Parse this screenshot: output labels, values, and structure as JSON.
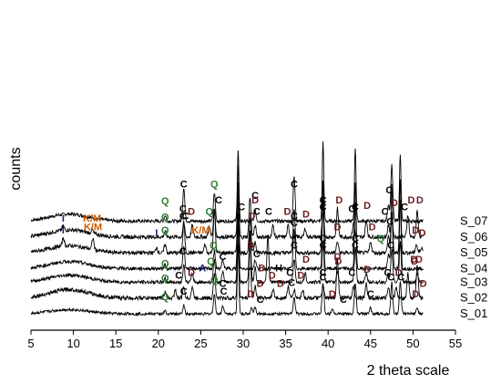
{
  "chart_data": {
    "type": "line",
    "title": "",
    "xlabel": "2 theta scale",
    "ylabel": "counts",
    "xlim": [
      5,
      55
    ],
    "x_ticks": [
      5,
      10,
      15,
      20,
      25,
      30,
      35,
      40,
      45,
      50,
      55
    ],
    "grid": false,
    "legend": "series labels at right end of each trace",
    "colors": {
      "trace": "#000000",
      "C": "#000000",
      "Q": "#2e7d32",
      "D": "#6b1a1a",
      "KM": "#cc5a00",
      "I": "#1a1a7a",
      "A": "#1a1a7a",
      "H": "#000000"
    },
    "series": [
      {
        "name": "S_07",
        "offset": 9,
        "noise": 0.6,
        "hump": 2.5,
        "peaks": [
          [
            20.8,
            2
          ],
          [
            23.0,
            12
          ],
          [
            26.6,
            10
          ],
          [
            29.4,
            25
          ],
          [
            31.4,
            4
          ],
          [
            36.0,
            16
          ],
          [
            39.4,
            28
          ],
          [
            43.2,
            26
          ],
          [
            47.1,
            6
          ],
          [
            47.5,
            20
          ],
          [
            48.5,
            24
          ]
        ]
      },
      {
        "name": "S_06",
        "offset": 7.6,
        "noise": 0.7,
        "hump": 2.5,
        "peaks": [
          [
            8.8,
            1.5
          ],
          [
            12.2,
            1.5
          ],
          [
            20.8,
            2
          ],
          [
            23.0,
            5
          ],
          [
            24.0,
            4
          ],
          [
            26.0,
            4
          ],
          [
            26.6,
            10
          ],
          [
            29.4,
            25
          ],
          [
            30.8,
            14
          ],
          [
            31.4,
            4
          ],
          [
            33.5,
            4
          ],
          [
            35.3,
            4
          ],
          [
            37.3,
            3
          ],
          [
            39.4,
            8
          ],
          [
            41.1,
            10
          ],
          [
            43.0,
            5
          ],
          [
            44.5,
            6
          ],
          [
            47.1,
            4
          ],
          [
            47.5,
            7
          ],
          [
            49.4,
            8
          ],
          [
            50.5,
            9
          ]
        ]
      },
      {
        "name": "S_05",
        "offset": 6.2,
        "noise": 0.7,
        "hump": 2.5,
        "peaks": [
          [
            8.8,
            3
          ],
          [
            12.3,
            4
          ],
          [
            19.8,
            2
          ],
          [
            20.8,
            3
          ],
          [
            23.0,
            10
          ],
          [
            25.5,
            3
          ],
          [
            26.6,
            15
          ],
          [
            29.4,
            25
          ],
          [
            30.8,
            12
          ],
          [
            31.4,
            4
          ],
          [
            36.0,
            16
          ],
          [
            39.4,
            25
          ],
          [
            41.1,
            4
          ],
          [
            43.2,
            25
          ],
          [
            45.0,
            4
          ],
          [
            47.1,
            6
          ],
          [
            47.5,
            24
          ],
          [
            48.5,
            26
          ],
          [
            50.4,
            3
          ],
          [
            51.0,
            2
          ]
        ]
      },
      {
        "name": "S_04",
        "offset": 4.8,
        "noise": 0.6,
        "hump": 2.5,
        "peaks": [
          [
            20.8,
            1.5
          ],
          [
            23.0,
            8
          ],
          [
            26.6,
            6
          ],
          [
            27.6,
            3
          ],
          [
            29.4,
            25
          ],
          [
            31.4,
            3
          ],
          [
            36.0,
            14
          ],
          [
            39.4,
            25
          ],
          [
            43.2,
            24
          ],
          [
            47.1,
            5
          ],
          [
            47.5,
            20
          ],
          [
            48.5,
            24
          ]
        ]
      },
      {
        "name": "S_03",
        "offset": 3.6,
        "noise": 0.6,
        "hump": 2.5,
        "peaks": [
          [
            20.8,
            1.5
          ],
          [
            23.0,
            6
          ],
          [
            24.0,
            3
          ],
          [
            26.6,
            8
          ],
          [
            27.6,
            4
          ],
          [
            29.4,
            25
          ],
          [
            30.8,
            18
          ],
          [
            31.4,
            5
          ],
          [
            32.9,
            17
          ],
          [
            36.0,
            8
          ],
          [
            37.3,
            3
          ],
          [
            39.4,
            14
          ],
          [
            41.1,
            4
          ],
          [
            43.2,
            12
          ],
          [
            44.5,
            3
          ],
          [
            47.1,
            3
          ],
          [
            47.5,
            12
          ],
          [
            48.5,
            14
          ],
          [
            50.5,
            3
          ]
        ]
      },
      {
        "name": "S_02",
        "offset": 2.2,
        "noise": 0.7,
        "hump": 3.0,
        "peaks": [
          [
            20.8,
            2
          ],
          [
            22.0,
            3
          ],
          [
            23.0,
            4
          ],
          [
            24.0,
            4
          ],
          [
            26.6,
            9
          ],
          [
            29.4,
            25
          ],
          [
            30.8,
            22
          ],
          [
            31.4,
            4
          ],
          [
            33.5,
            3
          ],
          [
            35.3,
            4
          ],
          [
            36.0,
            3
          ],
          [
            37.0,
            3
          ],
          [
            39.4,
            4
          ],
          [
            41.1,
            14
          ],
          [
            43.0,
            4
          ],
          [
            44.5,
            5
          ],
          [
            47.1,
            4
          ],
          [
            48.0,
            4
          ],
          [
            49.4,
            9
          ],
          [
            50.5,
            12
          ]
        ]
      },
      {
        "name": "S_01",
        "offset": 0.8,
        "noise": 0.5,
        "hump": 1.5,
        "peaks": [
          [
            20.8,
            1
          ],
          [
            23.0,
            3
          ],
          [
            26.6,
            7
          ],
          [
            27.6,
            3
          ],
          [
            29.4,
            25
          ],
          [
            31.0,
            2
          ],
          [
            31.4,
            2
          ],
          [
            36.0,
            6
          ],
          [
            39.4,
            11
          ],
          [
            40.5,
            2
          ],
          [
            43.2,
            11
          ],
          [
            45.0,
            2
          ],
          [
            47.5,
            11
          ],
          [
            48.5,
            11
          ],
          [
            50.5,
            2
          ]
        ]
      }
    ],
    "annotations": [
      {
        "t": "C",
        "x": 29.8,
        "s": 0,
        "k": "C"
      },
      {
        "t": "C",
        "x": 23.0,
        "s": 0,
        "k": "C"
      },
      {
        "t": "Q",
        "x": 26.6,
        "s": 0,
        "k": "Q"
      },
      {
        "t": "Q",
        "x": 20.8,
        "s": 0,
        "k": "Q"
      },
      {
        "t": "C",
        "x": 31.4,
        "s": 0,
        "k": "C"
      },
      {
        "t": "C",
        "x": 36.0,
        "s": 0,
        "k": "C"
      },
      {
        "t": "C",
        "x": 39.4,
        "s": 0,
        "k": "C"
      },
      {
        "t": "C",
        "x": 43.2,
        "s": 0,
        "k": "C"
      },
      {
        "t": "C",
        "x": 47.2,
        "s": 0,
        "k": "C"
      },
      {
        "t": "C",
        "x": 49.0,
        "s": 0,
        "k": "C"
      },
      {
        "t": "I",
        "x": 8.8,
        "s": 1,
        "k": "I"
      },
      {
        "t": "K/M",
        "x": 12.2,
        "s": 1,
        "k": "KM"
      },
      {
        "t": "Q",
        "x": 20.8,
        "s": 1,
        "k": "Q"
      },
      {
        "t": "C",
        "x": 22.9,
        "s": 1,
        "k": "C"
      },
      {
        "t": "D",
        "x": 23.9,
        "s": 1,
        "k": "D"
      },
      {
        "t": "Q",
        "x": 26.0,
        "s": 1,
        "k": "Q"
      },
      {
        "t": "C",
        "x": 27.1,
        "s": 1,
        "k": "C"
      },
      {
        "t": "D",
        "x": 31.4,
        "s": 1,
        "k": "D"
      },
      {
        "t": "C",
        "x": 31.6,
        "s": 1,
        "k": "C"
      },
      {
        "t": "C",
        "x": 33.0,
        "s": 1,
        "k": "C"
      },
      {
        "t": "D",
        "x": 35.2,
        "s": 1,
        "k": "D"
      },
      {
        "t": "C",
        "x": 36.0,
        "s": 1,
        "k": "C"
      },
      {
        "t": "D",
        "x": 37.4,
        "s": 1,
        "k": "D"
      },
      {
        "t": "C",
        "x": 39.4,
        "s": 1,
        "k": "C"
      },
      {
        "t": "D",
        "x": 41.3,
        "s": 1,
        "k": "D"
      },
      {
        "t": "C",
        "x": 42.8,
        "s": 1,
        "k": "C"
      },
      {
        "t": "D",
        "x": 44.6,
        "s": 1,
        "k": "D"
      },
      {
        "t": "C",
        "x": 46.7,
        "s": 1,
        "k": "C"
      },
      {
        "t": "D",
        "x": 47.8,
        "s": 1,
        "k": "D"
      },
      {
        "t": "D",
        "x": 49.8,
        "s": 1,
        "k": "D"
      },
      {
        "t": "D",
        "x": 50.8,
        "s": 1,
        "k": "D"
      },
      {
        "t": "I",
        "x": 8.8,
        "s": 2,
        "k": "I"
      },
      {
        "t": "K/M",
        "x": 12.3,
        "s": 2,
        "k": "KM"
      },
      {
        "t": "I",
        "x": 19.8,
        "s": 2,
        "k": "I"
      },
      {
        "t": "Q",
        "x": 20.8,
        "s": 2,
        "k": "Q"
      },
      {
        "t": "C",
        "x": 22.9,
        "s": 2,
        "k": "C"
      },
      {
        "t": "K/M",
        "x": 25.0,
        "s": 2,
        "k": "KM"
      },
      {
        "t": "C",
        "x": 23.2,
        "s": 2,
        "k": "C"
      },
      {
        "t": "D",
        "x": 31.0,
        "s": 2,
        "k": "D"
      },
      {
        "t": "C",
        "x": 36.0,
        "s": 2,
        "k": "C"
      },
      {
        "t": "C",
        "x": 39.4,
        "s": 2,
        "k": "C"
      },
      {
        "t": "D",
        "x": 41.1,
        "s": 2,
        "k": "D"
      },
      {
        "t": "C",
        "x": 43.2,
        "s": 2,
        "k": "C"
      },
      {
        "t": "D",
        "x": 45.2,
        "s": 2,
        "k": "D"
      },
      {
        "t": "Q",
        "x": 46.2,
        "s": 2,
        "k": "Q"
      },
      {
        "t": "C",
        "x": 47.3,
        "s": 2,
        "k": "C"
      },
      {
        "t": "D",
        "x": 50.3,
        "s": 2,
        "k": "D"
      },
      {
        "t": "D",
        "x": 51.1,
        "s": 2,
        "k": "D"
      },
      {
        "t": "Q",
        "x": 20.8,
        "s": 4,
        "k": "Q"
      },
      {
        "t": "C",
        "x": 22.9,
        "s": 4,
        "k": "C"
      },
      {
        "t": "Q",
        "x": 26.5,
        "s": 4,
        "k": "Q"
      },
      {
        "t": "C",
        "x": 27.6,
        "s": 4,
        "k": "C"
      },
      {
        "t": "D",
        "x": 30.9,
        "s": 4,
        "k": "D"
      },
      {
        "t": "C",
        "x": 31.6,
        "s": 4,
        "k": "C"
      },
      {
        "t": "D",
        "x": 32.2,
        "s": 4,
        "k": "D"
      },
      {
        "t": "A",
        "x": 25.2,
        "s": 4,
        "k": "A"
      },
      {
        "t": "H",
        "x": 34.2,
        "s": 4,
        "k": "H"
      },
      {
        "t": "C",
        "x": 36.0,
        "s": 4,
        "k": "C"
      },
      {
        "t": "D",
        "x": 37.4,
        "s": 4,
        "k": "D"
      },
      {
        "t": "C",
        "x": 39.4,
        "s": 4,
        "k": "C"
      },
      {
        "t": "D",
        "x": 41.1,
        "s": 4,
        "k": "D"
      },
      {
        "t": "C",
        "x": 43.2,
        "s": 4,
        "k": "C"
      },
      {
        "t": "C",
        "x": 47.4,
        "s": 4,
        "k": "C"
      },
      {
        "t": "D",
        "x": 50.1,
        "s": 4,
        "k": "D"
      },
      {
        "t": "D",
        "x": 50.7,
        "s": 4,
        "k": "D"
      },
      {
        "t": "Q",
        "x": 20.8,
        "s": 5,
        "k": "Q"
      },
      {
        "t": "C",
        "x": 22.4,
        "s": 5,
        "k": "C"
      },
      {
        "t": "D",
        "x": 23.9,
        "s": 5,
        "k": "D"
      },
      {
        "t": "Q",
        "x": 26.2,
        "s": 5,
        "k": "Q"
      },
      {
        "t": "C",
        "x": 27.6,
        "s": 5,
        "k": "C"
      },
      {
        "t": "D",
        "x": 32.0,
        "s": 5,
        "k": "D"
      },
      {
        "t": "D",
        "x": 33.4,
        "s": 5,
        "k": "D"
      },
      {
        "t": "D",
        "x": 34.4,
        "s": 5,
        "k": "D"
      },
      {
        "t": "C",
        "x": 35.5,
        "s": 5,
        "k": "C"
      },
      {
        "t": "D",
        "x": 36.8,
        "s": 5,
        "k": "D"
      },
      {
        "t": "C",
        "x": 39.4,
        "s": 5,
        "k": "C"
      },
      {
        "t": "D",
        "x": 41.2,
        "s": 5,
        "k": "D"
      },
      {
        "t": "C",
        "x": 42.8,
        "s": 5,
        "k": "C"
      },
      {
        "t": "D",
        "x": 44.6,
        "s": 5,
        "k": "D"
      },
      {
        "t": "C",
        "x": 47.0,
        "s": 5,
        "k": "C"
      },
      {
        "t": "D",
        "x": 48.3,
        "s": 5,
        "k": "D"
      },
      {
        "t": "D",
        "x": 50.2,
        "s": 5,
        "k": "D"
      },
      {
        "t": "D",
        "x": 51.2,
        "s": 5,
        "k": "D"
      },
      {
        "t": "Q",
        "x": 20.8,
        "s": 6,
        "k": "Q"
      },
      {
        "t": "C",
        "x": 23.0,
        "s": 6,
        "k": "C"
      },
      {
        "t": "Q",
        "x": 26.6,
        "s": 6,
        "k": "Q"
      },
      {
        "t": "C",
        "x": 27.7,
        "s": 6,
        "k": "C"
      },
      {
        "t": "D",
        "x": 30.9,
        "s": 6,
        "k": "D"
      },
      {
        "t": "C",
        "x": 32.0,
        "s": 6,
        "k": "C"
      },
      {
        "t": "C",
        "x": 35.7,
        "s": 6,
        "k": "C"
      },
      {
        "t": "C",
        "x": 39.4,
        "s": 6,
        "k": "C"
      },
      {
        "t": "D",
        "x": 40.5,
        "s": 6,
        "k": "D"
      },
      {
        "t": "C",
        "x": 41.8,
        "s": 6,
        "k": "C"
      },
      {
        "t": "C",
        "x": 45.0,
        "s": 6,
        "k": "C"
      },
      {
        "t": "C",
        "x": 47.4,
        "s": 6,
        "k": "C"
      },
      {
        "t": "C",
        "x": 48.6,
        "s": 6,
        "k": "C"
      },
      {
        "t": "D",
        "x": 50.3,
        "s": 6,
        "k": "D"
      }
    ]
  }
}
